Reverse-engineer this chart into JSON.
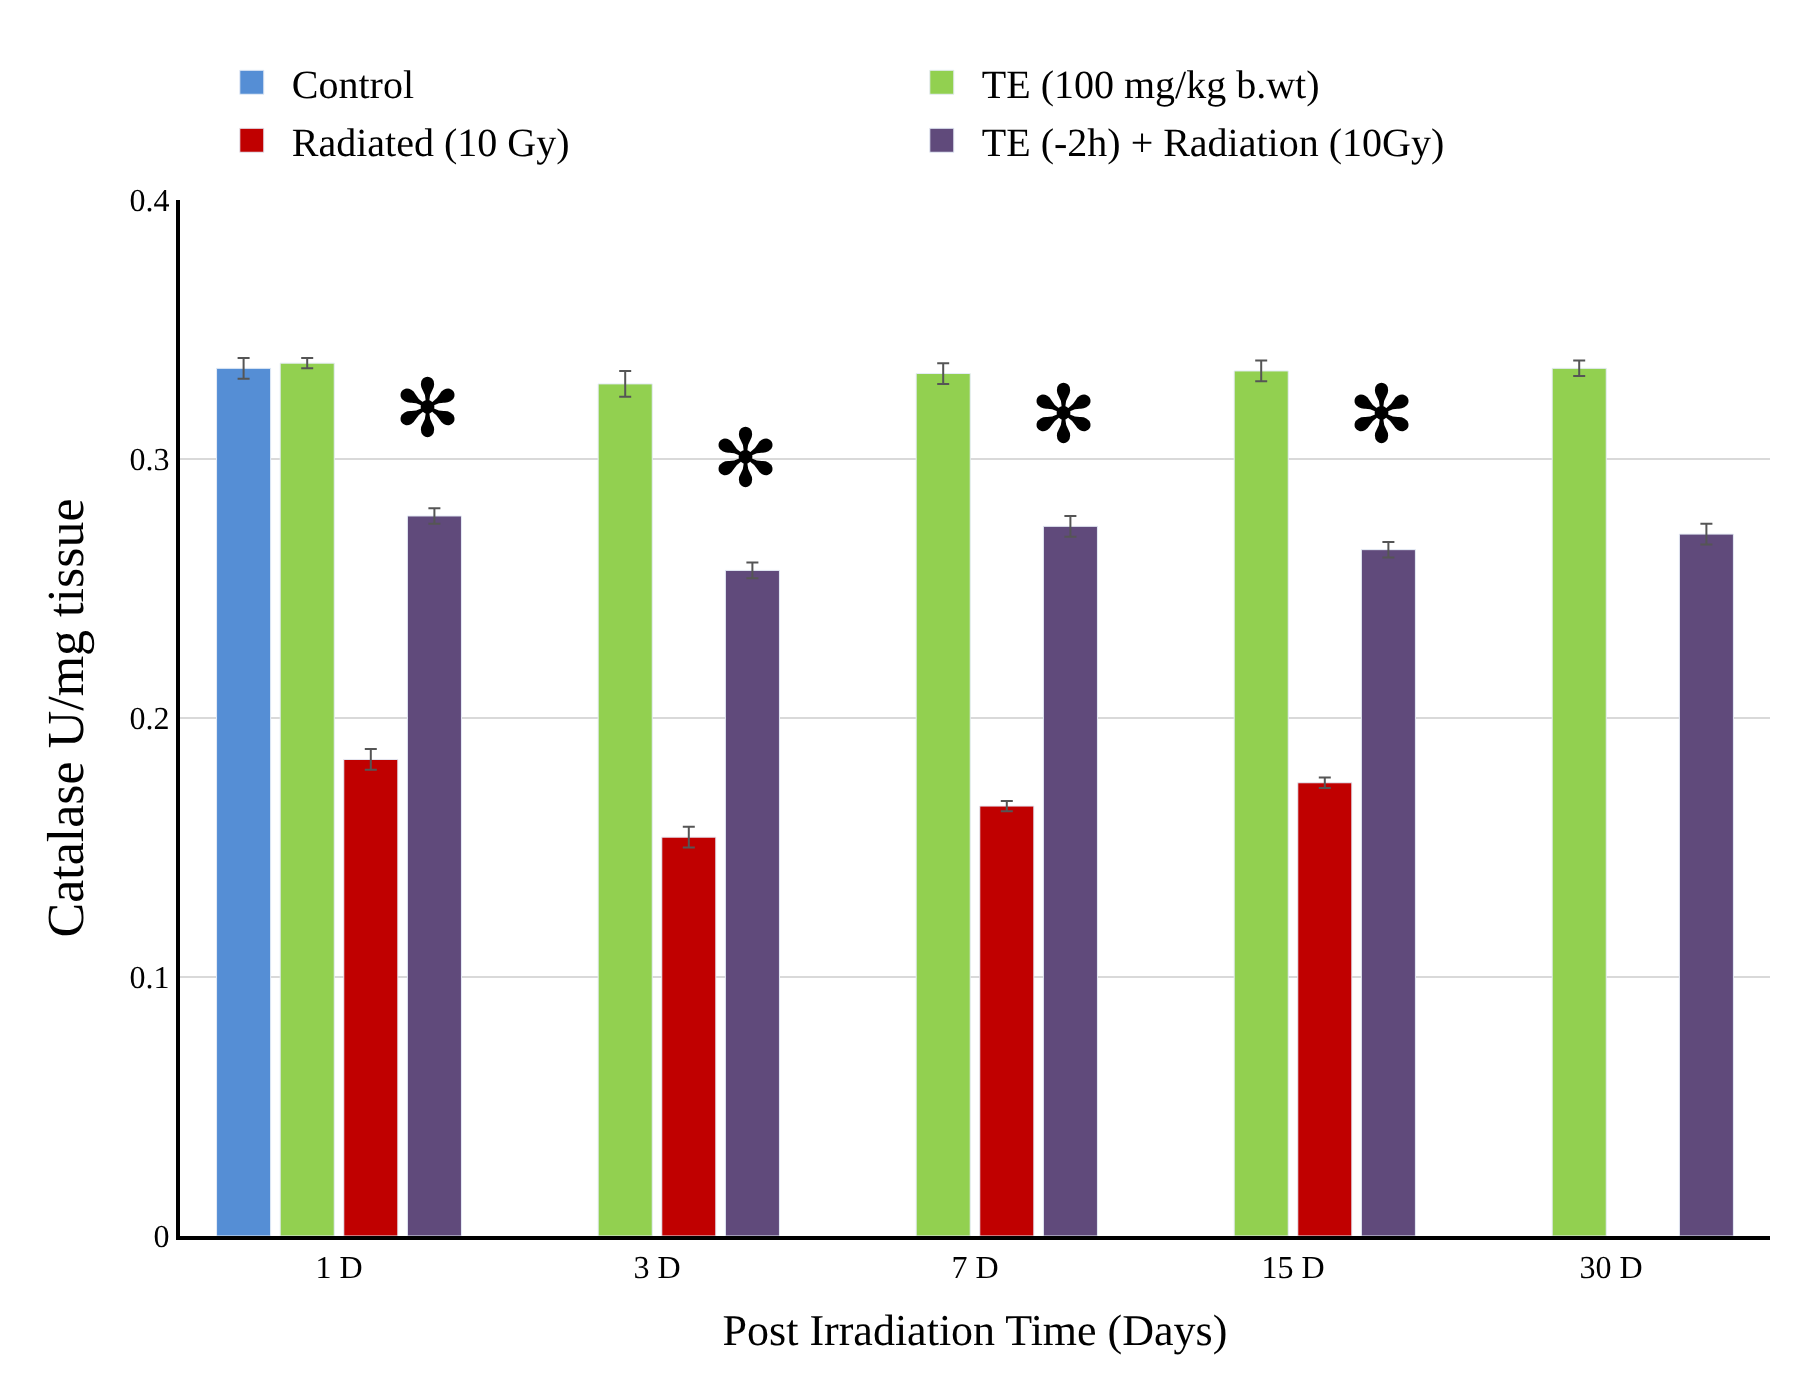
{
  "chart_data": {
    "type": "bar",
    "xlabel": "Post Irradiation Time (Days)",
    "ylabel": "Catalase U/mg tissue",
    "categories": [
      "1 D",
      "3 D",
      "7 D",
      "15 D",
      "30 D"
    ],
    "series": [
      {
        "name": "Control",
        "color": "#558ed5",
        "values": [
          0.335,
          null,
          null,
          null,
          null
        ],
        "errors": [
          0.004,
          null,
          null,
          null,
          null
        ]
      },
      {
        "name": "TE (100 mg/kg b.wt)",
        "color": "#92d050",
        "values": [
          0.337,
          0.329,
          0.333,
          0.334,
          0.335
        ],
        "errors": [
          0.002,
          0.005,
          0.004,
          0.004,
          0.003
        ]
      },
      {
        "name": "Radiated (10 Gy)",
        "color": "#c00000",
        "values": [
          0.184,
          0.154,
          0.166,
          0.175,
          null
        ],
        "errors": [
          0.004,
          0.004,
          0.002,
          0.002,
          null
        ]
      },
      {
        "name": "TE (-2h) + Radiation (10Gy)",
        "color": "#604a7b",
        "values": [
          0.278,
          0.257,
          0.274,
          0.265,
          0.271
        ],
        "errors": [
          0.003,
          0.003,
          0.004,
          0.003,
          0.004
        ]
      }
    ],
    "ylim": [
      0,
      0.4
    ],
    "yticks": [
      0,
      0.1,
      0.2,
      0.3,
      0.4
    ],
    "grid": "y",
    "legend": "top",
    "annotations": [
      {
        "text": "✻",
        "x": "1 D",
        "y": 0.3
      },
      {
        "text": "✻",
        "x": "3 D",
        "y": 0.28
      },
      {
        "text": "✻",
        "x": "7 D",
        "y": 0.297
      },
      {
        "text": "✻",
        "x": "15 D",
        "y": 0.297
      }
    ]
  }
}
